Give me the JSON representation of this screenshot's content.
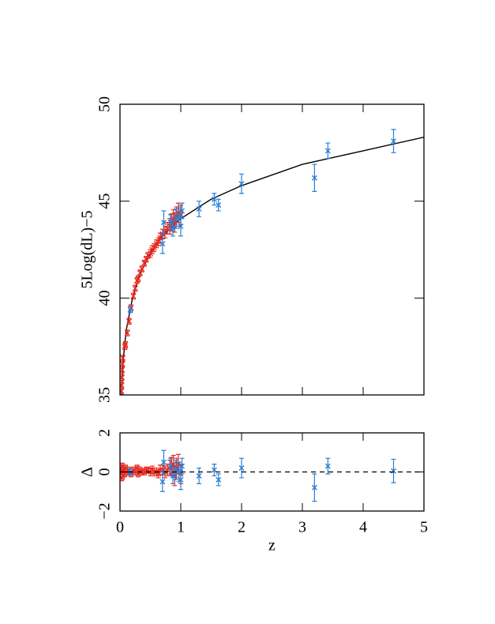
{
  "chart_data": [
    {
      "type": "scatter",
      "ylabel": "5Log(dL)−5",
      "xlim": [
        0,
        5
      ],
      "xticks": [
        0,
        1,
        2,
        3,
        4,
        5
      ],
      "ylim": [
        35,
        50
      ],
      "yticks": [
        35,
        40,
        45,
        50
      ],
      "model": {
        "color": "#000000",
        "x": [
          0.023,
          0.05,
          0.1,
          0.2,
          0.3,
          0.4,
          0.5,
          0.7,
          1,
          1.5,
          2,
          3,
          4,
          5
        ],
        "values": [
          35.0,
          36.7,
          38.3,
          39.9,
          41.0,
          41.7,
          42.3,
          43.2,
          44.1,
          45.1,
          45.8,
          46.9,
          47.6,
          48.3
        ]
      },
      "series": [
        {
          "color": "#e8281e",
          "x": [
            0.024,
            0.028,
            0.032,
            0.036,
            0.04,
            0.045,
            0.08,
            0.09,
            0.12,
            0.15,
            0.18,
            0.22,
            0.25,
            0.28,
            0.3,
            0.33,
            0.36,
            0.4,
            0.43,
            0.46,
            0.5,
            0.53,
            0.56,
            0.6,
            0.63,
            0.66,
            0.7,
            0.74,
            0.78,
            0.82,
            0.85,
            0.88,
            0.9,
            0.93,
            0.96,
            1.0
          ],
          "values": [
            35.2,
            35.5,
            35.9,
            36.3,
            36.6,
            36.9,
            37.5,
            37.6,
            38.2,
            38.8,
            39.5,
            40.1,
            40.5,
            40.9,
            41.0,
            41.3,
            41.5,
            41.8,
            42.0,
            42.2,
            42.3,
            42.5,
            42.6,
            42.8,
            42.9,
            43.1,
            43.3,
            43.4,
            43.6,
            43.7,
            43.9,
            44.1,
            43.9,
            44.2,
            44.4,
            44.3
          ],
          "errors": [
            0.15,
            0.15,
            0.15,
            0.15,
            0.15,
            0.15,
            0.15,
            0.15,
            0.15,
            0.15,
            0.15,
            0.15,
            0.15,
            0.15,
            0.15,
            0.15,
            0.15,
            0.15,
            0.15,
            0.15,
            0.2,
            0.2,
            0.2,
            0.2,
            0.2,
            0.25,
            0.25,
            0.3,
            0.3,
            0.4,
            0.45,
            0.45,
            0.5,
            0.5,
            0.5,
            0.5
          ]
        },
        {
          "color": "#2a7fd4",
          "x": [
            0.17,
            0.7,
            0.72,
            0.83,
            0.87,
            0.92,
            0.97,
            1.0,
            1.02,
            1.3,
            1.55,
            1.62,
            2.0,
            3.2,
            3.42,
            4.5
          ],
          "values": [
            39.4,
            42.8,
            43.9,
            43.9,
            43.6,
            44.1,
            44.2,
            43.7,
            44.5,
            44.6,
            45.1,
            44.8,
            45.9,
            46.2,
            47.6,
            48.1
          ],
          "errors": [
            0.15,
            0.5,
            0.6,
            0.4,
            0.4,
            0.5,
            0.5,
            0.5,
            0.4,
            0.4,
            0.3,
            0.3,
            0.5,
            0.7,
            0.4,
            0.6
          ]
        }
      ]
    },
    {
      "type": "scatter",
      "ylabel": "Δ",
      "xlabel": "z",
      "xlim": [
        0,
        5
      ],
      "xticks": [
        0,
        1,
        2,
        3,
        4,
        5
      ],
      "ylim": [
        -2,
        2
      ],
      "yticks": [
        {
          "value": -2,
          "label": "−2"
        },
        0,
        2
      ],
      "hline": 0,
      "series": [
        {
          "color": "#e8281e",
          "x": [
            0.024,
            0.028,
            0.032,
            0.036,
            0.04,
            0.045,
            0.08,
            0.09,
            0.12,
            0.15,
            0.18,
            0.22,
            0.25,
            0.28,
            0.3,
            0.33,
            0.36,
            0.4,
            0.43,
            0.46,
            0.5,
            0.53,
            0.56,
            0.6,
            0.63,
            0.66,
            0.7,
            0.74,
            0.78,
            0.82,
            0.85,
            0.88,
            0.9,
            0.93,
            0.96,
            1.0
          ],
          "values": [
            0.2,
            -0.3,
            0.1,
            0.3,
            -0.2,
            0.0,
            -0.1,
            0.2,
            0.0,
            0.1,
            -0.1,
            0.1,
            0.0,
            0.2,
            -0.1,
            0.1,
            0.0,
            0.0,
            0.1,
            0.1,
            0.0,
            0.1,
            0.0,
            0.0,
            -0.1,
            0.1,
            0.1,
            0.0,
            0.1,
            0.2,
            0.3,
            0.4,
            -0.2,
            0.2,
            0.4,
            -0.1
          ],
          "errors": [
            0.15,
            0.15,
            0.15,
            0.15,
            0.15,
            0.15,
            0.15,
            0.15,
            0.15,
            0.15,
            0.15,
            0.15,
            0.15,
            0.15,
            0.15,
            0.15,
            0.15,
            0.15,
            0.15,
            0.15,
            0.2,
            0.2,
            0.2,
            0.2,
            0.2,
            0.25,
            0.25,
            0.3,
            0.3,
            0.4,
            0.45,
            0.45,
            0.5,
            0.5,
            0.5,
            0.5
          ]
        },
        {
          "color": "#2a7fd4",
          "x": [
            0.17,
            0.7,
            0.72,
            0.83,
            0.87,
            0.92,
            0.97,
            1.0,
            1.02,
            1.3,
            1.55,
            1.62,
            2.0,
            3.2,
            3.42,
            4.5
          ],
          "values": [
            0.0,
            -0.5,
            0.5,
            0.3,
            -0.2,
            0.1,
            0.0,
            -0.4,
            0.3,
            -0.2,
            0.1,
            -0.4,
            0.2,
            -0.8,
            0.3,
            0.05
          ],
          "errors": [
            0.15,
            0.5,
            0.6,
            0.4,
            0.4,
            0.5,
            0.5,
            0.5,
            0.4,
            0.4,
            0.3,
            0.3,
            0.5,
            0.7,
            0.4,
            0.6
          ]
        }
      ]
    }
  ]
}
